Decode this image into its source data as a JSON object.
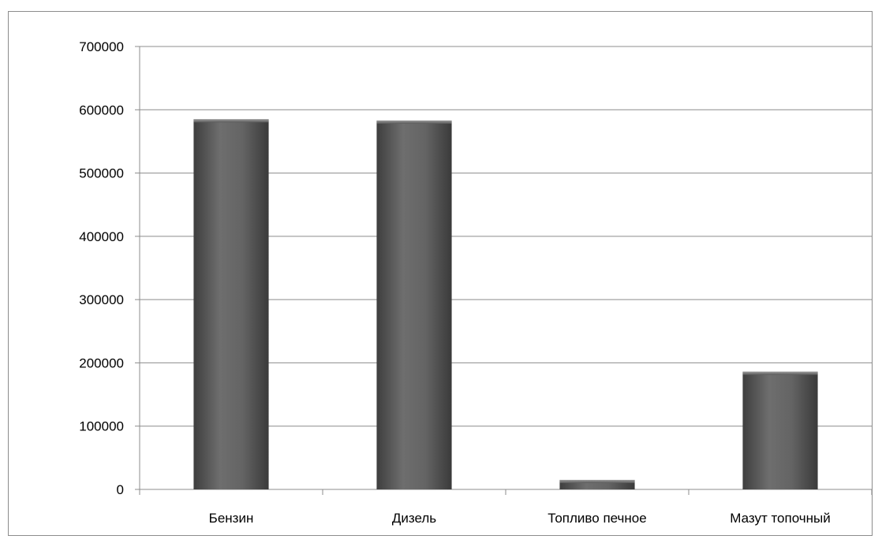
{
  "chart_data": {
    "type": "bar",
    "categories": [
      "Бензин",
      "Дизель",
      "Топливо печное",
      "Мазут топочный"
    ],
    "values": [
      585000,
      583000,
      15000,
      186000
    ],
    "ylim": [
      0,
      700000
    ],
    "yticks": [
      "0",
      "100000",
      "200000",
      "300000",
      "400000",
      "500000",
      "600000",
      "700000"
    ],
    "grid": true,
    "legend": "none",
    "colors": {
      "bar": "#5a5a5a",
      "bar_highlight": "#7a7a7a",
      "grid": "#8c8c8c"
    }
  }
}
